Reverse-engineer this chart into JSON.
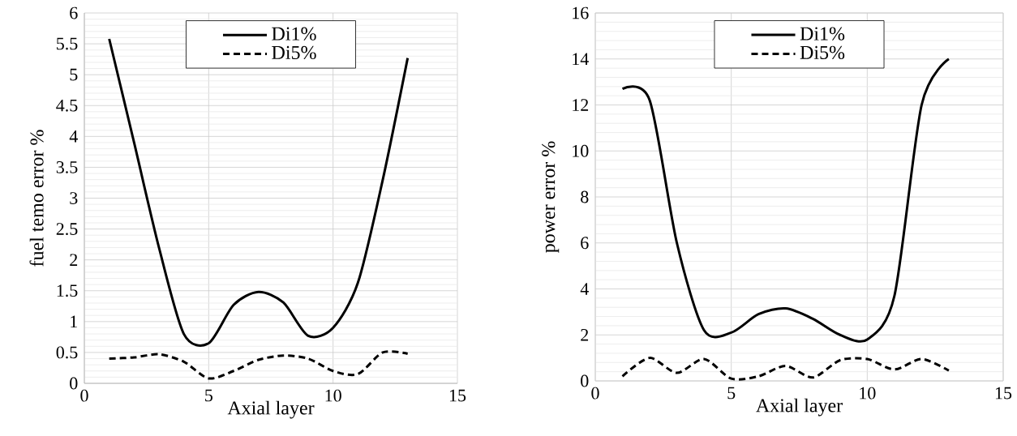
{
  "chart_data": [
    {
      "type": "line",
      "xlabel": "Axial layer",
      "ylabel": "fuel temo error %",
      "x": [
        1,
        2,
        3,
        4,
        5,
        6,
        7,
        8,
        9,
        10,
        11,
        12,
        13
      ],
      "series": [
        {
          "name": "Di1%",
          "color": "#000000",
          "line_style": "solid",
          "values": [
            5.58,
            3.9,
            2.2,
            0.8,
            0.65,
            1.27,
            1.48,
            1.31,
            0.77,
            0.9,
            1.63,
            3.3,
            5.27
          ]
        },
        {
          "name": "Di5%",
          "color": "#000000",
          "line_style": "dashed",
          "values": [
            0.4,
            0.42,
            0.47,
            0.35,
            0.08,
            0.2,
            0.38,
            0.45,
            0.4,
            0.2,
            0.15,
            0.5,
            0.48
          ]
        }
      ],
      "xlim": [
        0,
        15
      ],
      "xticks": [
        0,
        5,
        10,
        15
      ],
      "ylim": [
        0,
        6
      ],
      "yticks": [
        0,
        0.5,
        1,
        1.5,
        2,
        2.5,
        3,
        3.5,
        4,
        4.5,
        5,
        5.5,
        6
      ],
      "grid": true,
      "legend": "top",
      "marker": "none"
    },
    {
      "type": "line",
      "xlabel": "Axial layer",
      "ylabel": "power error %",
      "x": [
        1,
        2,
        3,
        4,
        5,
        6,
        7,
        8,
        9,
        10,
        11,
        12,
        13
      ],
      "series": [
        {
          "name": "Di1%",
          "color": "#000000",
          "line_style": "solid",
          "values": [
            12.7,
            12.2,
            6.0,
            2.2,
            2.1,
            2.9,
            3.15,
            2.7,
            2.0,
            1.8,
            3.7,
            12.0,
            14.0
          ]
        },
        {
          "name": "Di5%",
          "color": "#000000",
          "line_style": "dashed",
          "values": [
            0.2,
            1.0,
            0.35,
            0.95,
            0.1,
            0.2,
            0.65,
            0.15,
            0.9,
            0.95,
            0.5,
            0.95,
            0.45
          ]
        }
      ],
      "xlim": [
        0,
        15
      ],
      "xticks": [
        0,
        5,
        10,
        15
      ],
      "ylim": [
        0,
        16
      ],
      "yticks": [
        0,
        2,
        4,
        6,
        8,
        10,
        12,
        14,
        16
      ],
      "grid": true,
      "legend": "top",
      "marker": "none"
    }
  ]
}
